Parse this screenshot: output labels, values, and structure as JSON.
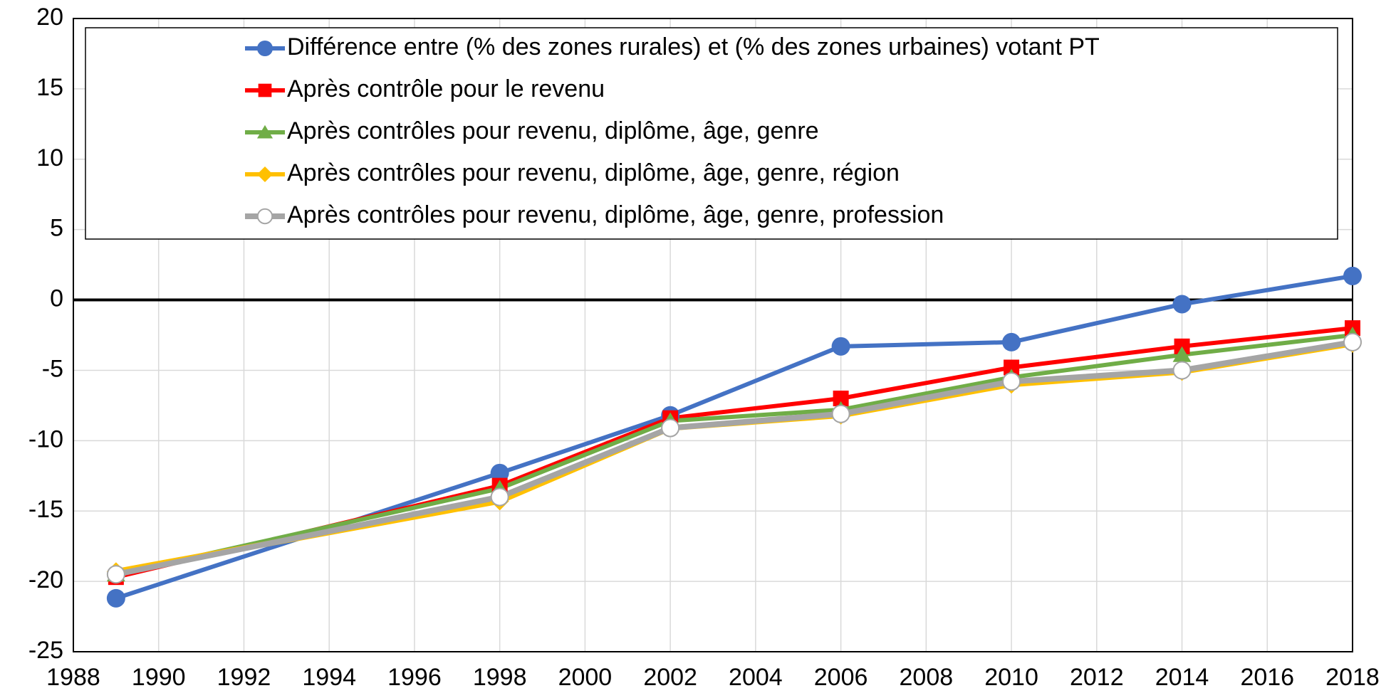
{
  "chart_data": {
    "type": "line",
    "x": [
      1989,
      1998,
      2002,
      2006,
      2010,
      2014,
      2018
    ],
    "series": [
      {
        "name": "Différence entre (% des zones rurales) et (% des zones urbaines) votant PT",
        "color": "#4472c4",
        "marker": "circle",
        "values": [
          -21.2,
          -12.3,
          -8.2,
          -3.3,
          -3.0,
          -0.3,
          1.7
        ]
      },
      {
        "name": "Après contrôle pour le revenu",
        "color": "#ff0000",
        "marker": "square",
        "values": [
          -19.7,
          -13.2,
          -8.4,
          -7.0,
          -4.8,
          -3.3,
          -2.0
        ]
      },
      {
        "name": "Après contrôles pour revenu, diplôme, âge, genre",
        "color": "#70ad47",
        "marker": "triangle",
        "values": [
          -19.5,
          -13.4,
          -8.6,
          -7.8,
          -5.5,
          -3.9,
          -2.5
        ]
      },
      {
        "name": "Après contrôles pour revenu, diplôme, âge, genre, région",
        "color": "#ffc000",
        "marker": "diamond",
        "values": [
          -19.3,
          -14.3,
          -9.1,
          -8.2,
          -6.0,
          -5.1,
          -3.1
        ]
      },
      {
        "name": "Après contrôles pour revenu, diplôme, âge, genre, profession",
        "color": "#a5a5a5",
        "marker": "open-circle",
        "values": [
          -19.5,
          -14.0,
          -9.1,
          -8.1,
          -5.8,
          -5.0,
          -3.0
        ]
      }
    ],
    "xlim": [
      1988,
      2018
    ],
    "xticks": [
      1988,
      1990,
      1992,
      1994,
      1996,
      1998,
      2000,
      2002,
      2004,
      2006,
      2008,
      2010,
      2012,
      2014,
      2016,
      2018
    ],
    "ylim": [
      -25,
      20
    ],
    "yticks": [
      -25,
      -20,
      -15,
      -10,
      -5,
      0,
      5,
      10,
      15,
      20
    ],
    "grid": true,
    "legend": "top"
  }
}
